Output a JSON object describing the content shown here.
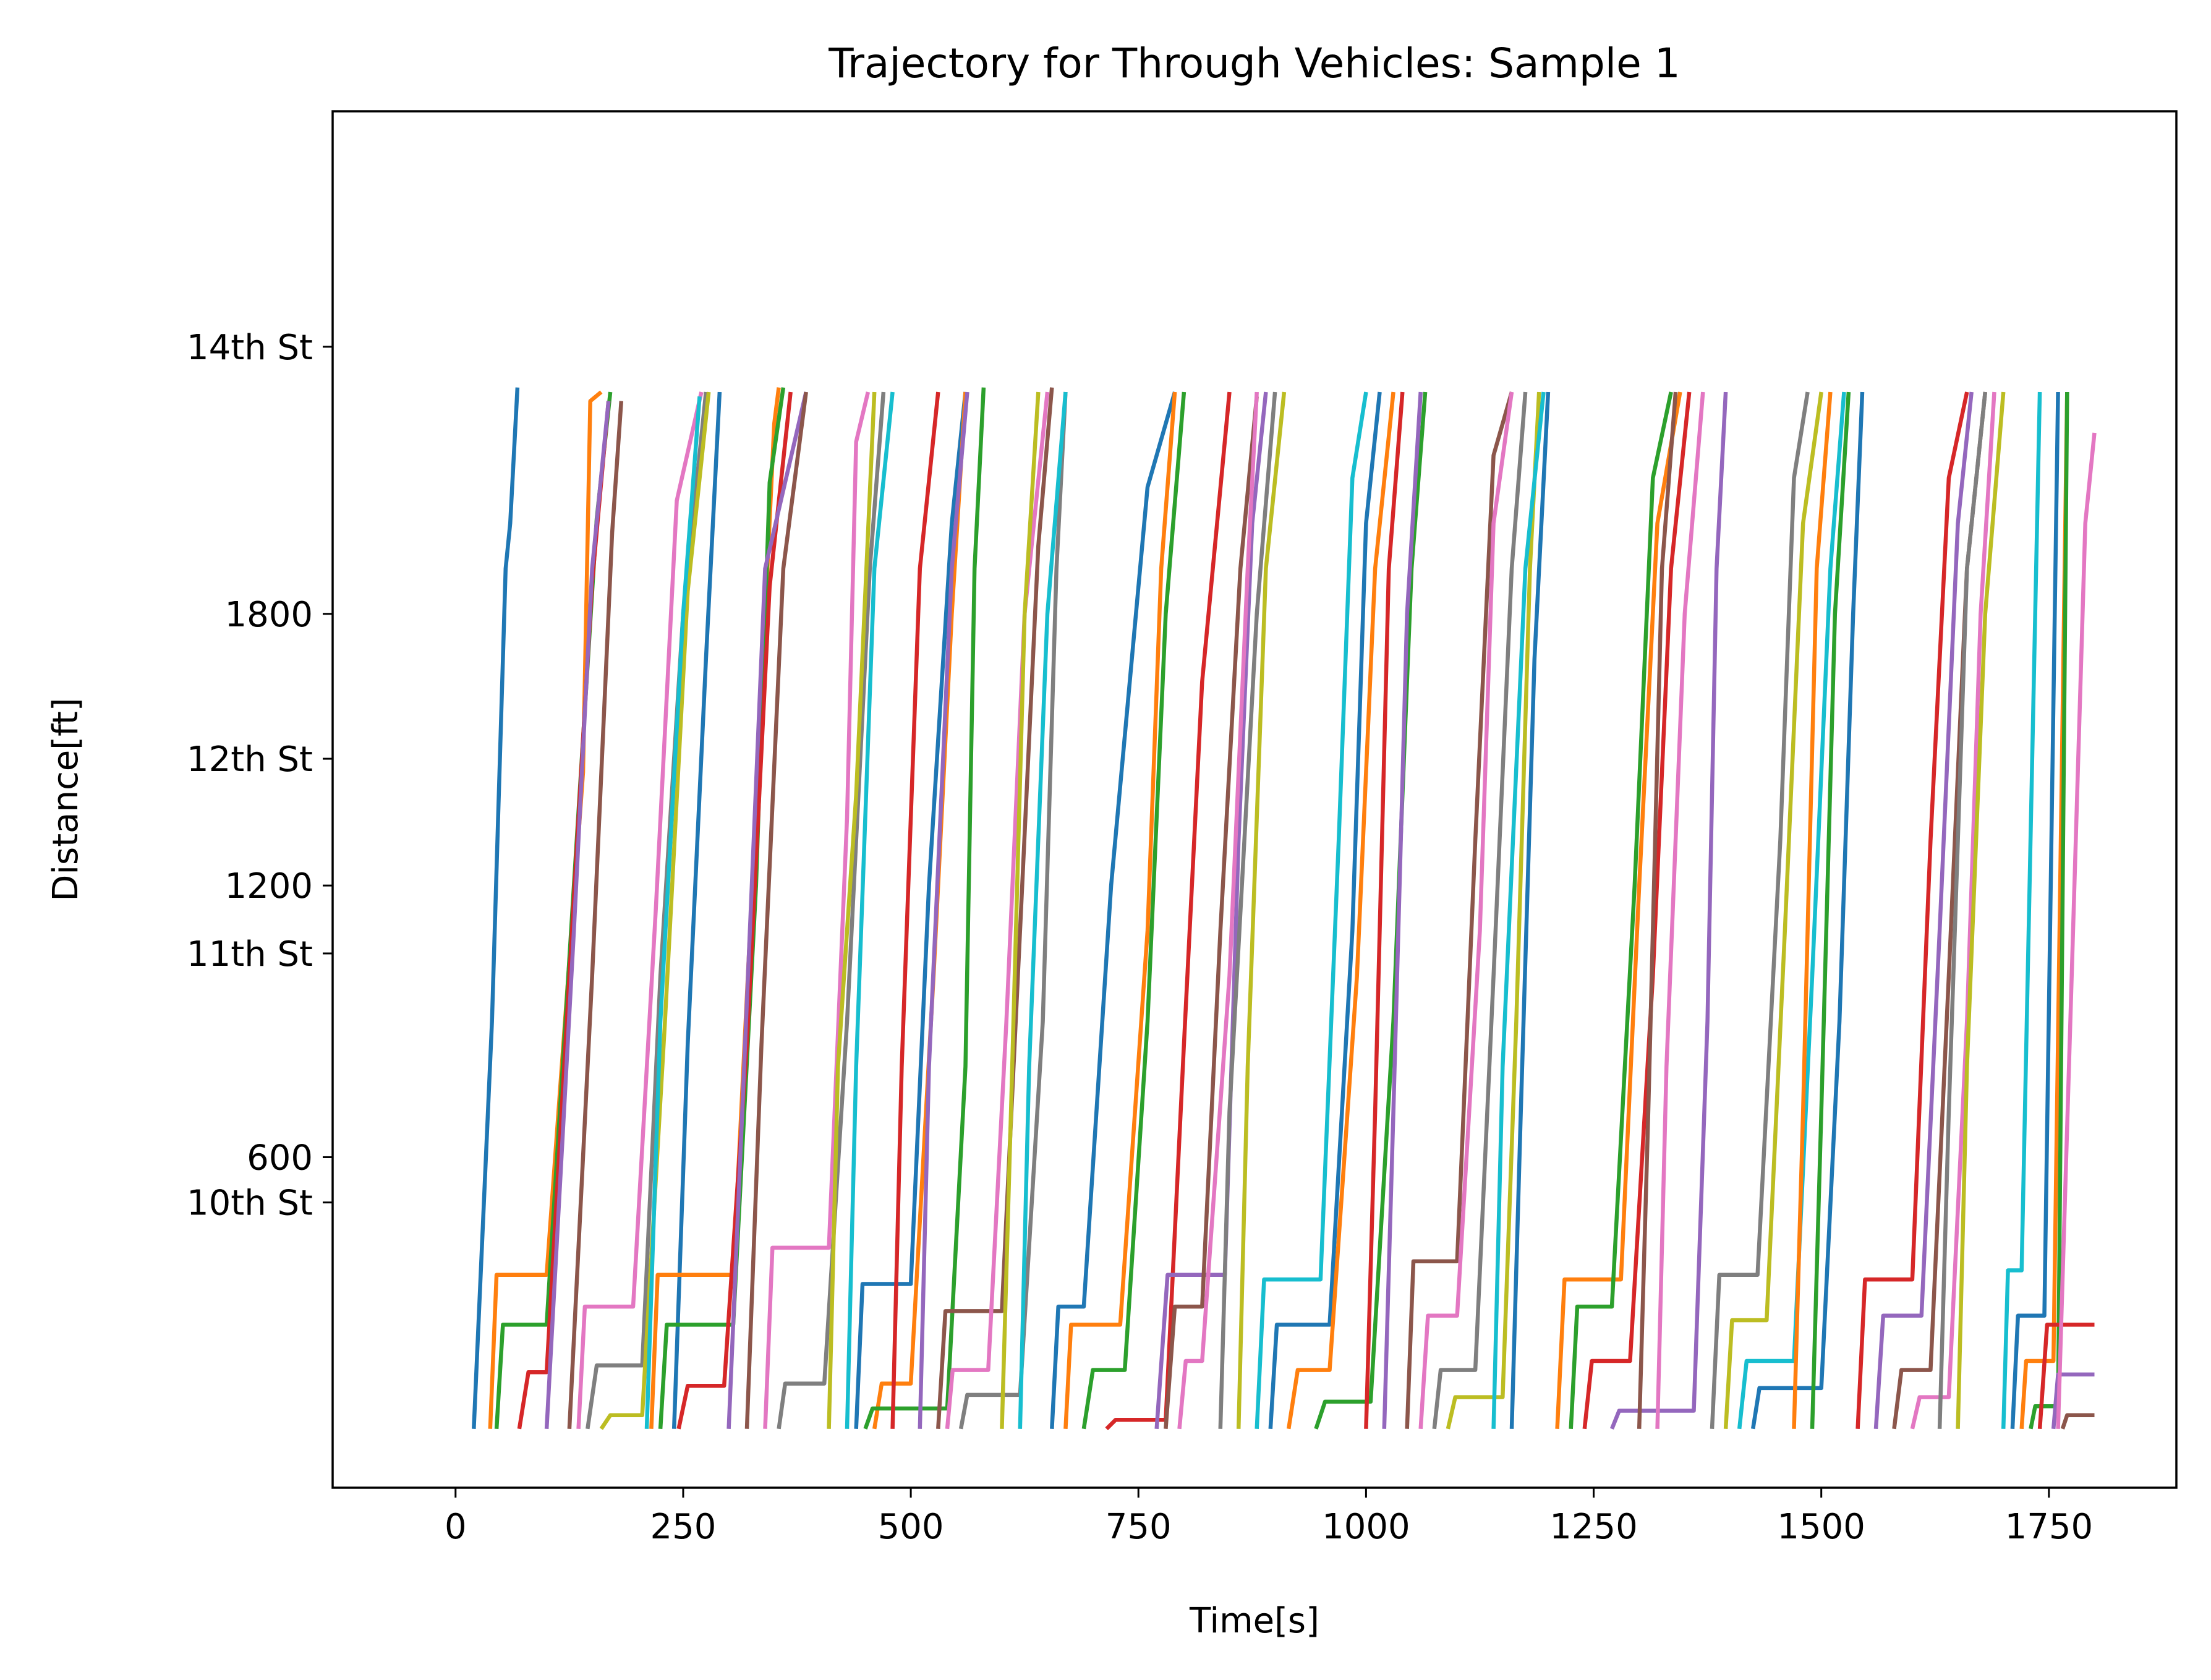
{
  "chart_data": {
    "type": "line",
    "title": "Trajectory for Through Vehicles: Sample 1",
    "xlabel": "Time[s]",
    "ylabel": "Distance[ft]",
    "xlim": [
      -135,
      1890
    ],
    "ylim": [
      -130,
      2910
    ],
    "grid": false,
    "legend": "none",
    "x_ticks": [
      {
        "value": 0,
        "label": "0"
      },
      {
        "value": 250,
        "label": "250"
      },
      {
        "value": 500,
        "label": "500"
      },
      {
        "value": 750,
        "label": "750"
      },
      {
        "value": 1000,
        "label": "1000"
      },
      {
        "value": 1250,
        "label": "1250"
      },
      {
        "value": 1500,
        "label": "1500"
      },
      {
        "value": 1750,
        "label": "1750"
      }
    ],
    "y_ticks": [
      {
        "value": 500,
        "label": "10th St"
      },
      {
        "value": 600,
        "label": "600"
      },
      {
        "value": 1050,
        "label": "11th St"
      },
      {
        "value": 1200,
        "label": "1200"
      },
      {
        "value": 1480,
        "label": "12th St"
      },
      {
        "value": 1800,
        "label": "1800"
      },
      {
        "value": 2390,
        "label": "14th St"
      }
    ],
    "palette": [
      "#1f77b4",
      "#ff7f0e",
      "#2ca02c",
      "#d62728",
      "#9467bd",
      "#8c564b",
      "#e377c2",
      "#7f7f7f",
      "#bcbd22",
      "#17becf"
    ],
    "series": [
      {
        "x": [
          20,
          40,
          55,
          60,
          68
        ],
        "y": [
          0,
          900,
          1900,
          2000,
          2300
        ]
      },
      {
        "x": [
          38,
          45,
          100,
          140,
          148,
          160
        ],
        "y": [
          0,
          340,
          340,
          1450,
          2270,
          2290
        ]
      },
      {
        "x": [
          45,
          52,
          100,
          130,
          155,
          170
        ],
        "y": [
          0,
          230,
          230,
          1200,
          2010,
          2290
        ]
      },
      {
        "x": [
          70,
          80,
          100,
          125,
          150,
          168
        ],
        "y": [
          0,
          125,
          125,
          1000,
          1870,
          2270
        ]
      },
      {
        "x": [
          100,
          130,
          150,
          168
        ],
        "y": [
          0,
          1100,
          1900,
          2270
        ]
      },
      {
        "x": [
          125,
          150,
          172,
          182
        ],
        "y": [
          0,
          1000,
          1980,
          2270
        ]
      },
      {
        "x": [
          135,
          142,
          195,
          220,
          243,
          270
        ],
        "y": [
          0,
          270,
          270,
          1150,
          2050,
          2290
        ]
      },
      {
        "x": [
          145,
          155,
          205,
          225,
          250,
          275
        ],
        "y": [
          0,
          140,
          140,
          1000,
          1800,
          2290
        ]
      },
      {
        "x": [
          160,
          170,
          205,
          230,
          255,
          278
        ],
        "y": [
          0,
          30,
          30,
          900,
          1850,
          2290
        ]
      },
      {
        "x": [
          210,
          225,
          250,
          268
        ],
        "y": [
          0,
          900,
          1800,
          2280
        ]
      },
      {
        "x": [
          240,
          255,
          275,
          290
        ],
        "y": [
          0,
          850,
          1700,
          2290
        ]
      },
      {
        "x": [
          215,
          222,
          305,
          330,
          350,
          355
        ],
        "y": [
          0,
          340,
          340,
          1370,
          2220,
          2300
        ]
      },
      {
        "x": [
          225,
          232,
          305,
          330,
          345,
          360
        ],
        "y": [
          0,
          230,
          230,
          1200,
          2090,
          2300
        ]
      },
      {
        "x": [
          245,
          255,
          295,
          320,
          345,
          368
        ],
        "y": [
          0,
          95,
          95,
          850,
          1860,
          2290
        ]
      },
      {
        "x": [
          300,
          318,
          340,
          385
        ],
        "y": [
          0,
          850,
          1900,
          2290
        ]
      },
      {
        "x": [
          320,
          336,
          360,
          385
        ],
        "y": [
          0,
          850,
          1900,
          2290
        ]
      },
      {
        "x": [
          340,
          348,
          410,
          430,
          440,
          453
        ],
        "y": [
          0,
          400,
          400,
          1350,
          2180,
          2290
        ]
      },
      {
        "x": [
          355,
          362,
          405,
          430,
          455,
          470
        ],
        "y": [
          0,
          100,
          100,
          900,
          1900,
          2290
        ]
      },
      {
        "x": [
          410,
          420,
          440,
          460
        ],
        "y": [
          0,
          800,
          1400,
          2290
        ]
      },
      {
        "x": [
          430,
          440,
          460,
          480
        ],
        "y": [
          0,
          800,
          1900,
          2290
        ]
      },
      {
        "x": [
          440,
          447,
          500,
          520,
          545,
          560
        ],
        "y": [
          0,
          320,
          320,
          1200,
          2000,
          2290
        ]
      },
      {
        "x": [
          460,
          468,
          500,
          525,
          545,
          560
        ],
        "y": [
          0,
          100,
          100,
          1000,
          1800,
          2290
        ]
      },
      {
        "x": [
          450,
          458,
          540,
          560,
          570,
          580
        ],
        "y": [
          0,
          45,
          45,
          800,
          1900,
          2300
        ]
      },
      {
        "x": [
          480,
          490,
          510,
          530
        ],
        "y": [
          0,
          800,
          1900,
          2290
        ]
      },
      {
        "x": [
          510,
          520,
          545,
          562
        ],
        "y": [
          0,
          800,
          1900,
          2290
        ]
      },
      {
        "x": [
          530,
          538,
          600,
          620,
          640,
          655
        ],
        "y": [
          0,
          260,
          260,
          1100,
          1950,
          2300
        ]
      },
      {
        "x": [
          540,
          546,
          585,
          605,
          625,
          650
        ],
        "y": [
          0,
          130,
          130,
          900,
          1800,
          2290
        ]
      },
      {
        "x": [
          555,
          562,
          620,
          645,
          660,
          670
        ],
        "y": [
          0,
          75,
          75,
          900,
          1900,
          2290
        ]
      },
      {
        "x": [
          600,
          610,
          625,
          640
        ],
        "y": [
          0,
          700,
          1800,
          2290
        ]
      },
      {
        "x": [
          620,
          630,
          650,
          670
        ],
        "y": [
          0,
          800,
          1800,
          2290
        ]
      },
      {
        "x": [
          655,
          662,
          690,
          720,
          760,
          790
        ],
        "y": [
          0,
          270,
          270,
          1200,
          2080,
          2290
        ]
      },
      {
        "x": [
          670,
          676,
          730,
          760,
          775,
          790
        ],
        "y": [
          0,
          230,
          230,
          1100,
          1900,
          2290
        ]
      },
      {
        "x": [
          690,
          700,
          735,
          760,
          780,
          800
        ],
        "y": [
          0,
          130,
          130,
          900,
          1800,
          2290
        ]
      },
      {
        "x": [
          715,
          725,
          780,
          800,
          820,
          850
        ],
        "y": [
          0,
          20,
          20,
          850,
          1650,
          2290
        ]
      },
      {
        "x": [
          770,
          782,
          845,
          860,
          875,
          890
        ],
        "y": [
          0,
          340,
          340,
          1300,
          2000,
          2290
        ]
      },
      {
        "x": [
          780,
          790,
          820,
          840,
          862,
          880
        ],
        "y": [
          0,
          270,
          270,
          1100,
          1900,
          2280
        ]
      },
      {
        "x": [
          795,
          802,
          820,
          850,
          870,
          880
        ],
        "y": [
          0,
          150,
          150,
          1000,
          1900,
          2290
        ]
      },
      {
        "x": [
          840,
          850,
          880,
          900
        ],
        "y": [
          0,
          700,
          1800,
          2290
        ]
      },
      {
        "x": [
          860,
          870,
          890,
          910
        ],
        "y": [
          0,
          800,
          1900,
          2290
        ]
      },
      {
        "x": [
          880,
          888,
          950,
          970,
          985,
          1000
        ],
        "y": [
          0,
          330,
          330,
          1300,
          2100,
          2290
        ]
      },
      {
        "x": [
          895,
          902,
          960,
          985,
          1000,
          1015
        ],
        "y": [
          0,
          230,
          230,
          1100,
          2000,
          2290
        ]
      },
      {
        "x": [
          915,
          925,
          960,
          990,
          1010,
          1030
        ],
        "y": [
          0,
          130,
          130,
          1000,
          1900,
          2290
        ]
      },
      {
        "x": [
          945,
          955,
          1005,
          1030,
          1050,
          1065
        ],
        "y": [
          0,
          60,
          60,
          900,
          1900,
          2290
        ]
      },
      {
        "x": [
          1000,
          1010,
          1025,
          1040
        ],
        "y": [
          0,
          700,
          1900,
          2290
        ]
      },
      {
        "x": [
          1020,
          1030,
          1045,
          1060
        ],
        "y": [
          0,
          700,
          1800,
          2290
        ]
      },
      {
        "x": [
          1045,
          1052,
          1100,
          1120,
          1140,
          1160
        ],
        "y": [
          0,
          370,
          370,
          1300,
          2150,
          2290
        ]
      },
      {
        "x": [
          1060,
          1068,
          1100,
          1125,
          1140,
          1160
        ],
        "y": [
          0,
          250,
          250,
          1100,
          2000,
          2290
        ]
      },
      {
        "x": [
          1075,
          1082,
          1120,
          1140,
          1160,
          1175
        ],
        "y": [
          0,
          130,
          130,
          1000,
          1900,
          2290
        ]
      },
      {
        "x": [
          1090,
          1098,
          1150,
          1165,
          1180,
          1190
        ],
        "y": [
          0,
          70,
          70,
          900,
          1900,
          2290
        ]
      },
      {
        "x": [
          1140,
          1150,
          1175,
          1195
        ],
        "y": [
          0,
          800,
          1900,
          2290
        ]
      },
      {
        "x": [
          1160,
          1170,
          1185,
          1200
        ],
        "y": [
          0,
          700,
          1700,
          2290
        ]
      },
      {
        "x": [
          1210,
          1218,
          1280,
          1300,
          1320,
          1345
        ],
        "y": [
          0,
          330,
          330,
          1200,
          2000,
          2290
        ]
      },
      {
        "x": [
          1225,
          1232,
          1270,
          1295,
          1315,
          1335
        ],
        "y": [
          0,
          270,
          270,
          1200,
          2100,
          2290
        ]
      },
      {
        "x": [
          1240,
          1248,
          1290,
          1315,
          1335,
          1355
        ],
        "y": [
          0,
          150,
          150,
          1000,
          1900,
          2290
        ]
      },
      {
        "x": [
          1270,
          1278,
          1360,
          1375,
          1385,
          1395
        ],
        "y": [
          0,
          40,
          40,
          900,
          1900,
          2290
        ]
      },
      {
        "x": [
          1300,
          1310,
          1325,
          1340
        ],
        "y": [
          0,
          700,
          1900,
          2290
        ]
      },
      {
        "x": [
          1320,
          1330,
          1350,
          1370
        ],
        "y": [
          0,
          800,
          1800,
          2290
        ]
      },
      {
        "x": [
          1380,
          1388,
          1430,
          1455,
          1470,
          1485
        ],
        "y": [
          0,
          340,
          340,
          1300,
          2100,
          2290
        ]
      },
      {
        "x": [
          1395,
          1402,
          1440,
          1460,
          1480,
          1500
        ],
        "y": [
          0,
          240,
          240,
          1100,
          2000,
          2290
        ]
      },
      {
        "x": [
          1410,
          1418,
          1470,
          1490,
          1510,
          1525
        ],
        "y": [
          0,
          150,
          150,
          1000,
          1900,
          2290
        ]
      },
      {
        "x": [
          1425,
          1432,
          1500,
          1520,
          1535,
          1545
        ],
        "y": [
          0,
          90,
          90,
          900,
          1800,
          2290
        ]
      },
      {
        "x": [
          1470,
          1480,
          1495,
          1510
        ],
        "y": [
          0,
          700,
          1900,
          2290
        ]
      },
      {
        "x": [
          1490,
          1500,
          1515,
          1530
        ],
        "y": [
          0,
          700,
          1800,
          2290
        ]
      },
      {
        "x": [
          1540,
          1548,
          1600,
          1620,
          1640,
          1660
        ],
        "y": [
          0,
          330,
          330,
          1300,
          2100,
          2290
        ]
      },
      {
        "x": [
          1560,
          1568,
          1610,
          1630,
          1650,
          1665
        ],
        "y": [
          0,
          250,
          250,
          1100,
          2000,
          2290
        ]
      },
      {
        "x": [
          1580,
          1588,
          1620,
          1640,
          1660,
          1680
        ],
        "y": [
          0,
          130,
          130,
          1000,
          1900,
          2290
        ]
      },
      {
        "x": [
          1600,
          1608,
          1640,
          1660,
          1675,
          1690
        ],
        "y": [
          0,
          70,
          70,
          900,
          1800,
          2290
        ]
      },
      {
        "x": [
          1630,
          1640,
          1660,
          1680
        ],
        "y": [
          0,
          700,
          1900,
          2290
        ]
      },
      {
        "x": [
          1650,
          1660,
          1680,
          1700
        ],
        "y": [
          0,
          800,
          1800,
          2290
        ]
      },
      {
        "x": [
          1700,
          1705,
          1720,
          1740
        ],
        "y": [
          0,
          350,
          350,
          2290
        ]
      },
      {
        "x": [
          1710,
          1716,
          1745,
          1760
        ],
        "y": [
          0,
          250,
          250,
          2290
        ]
      },
      {
        "x": [
          1720,
          1725,
          1755,
          1770
        ],
        "y": [
          0,
          150,
          150,
          2290
        ]
      },
      {
        "x": [
          1730,
          1735,
          1760,
          1770
        ],
        "y": [
          0,
          50,
          50,
          2290
        ]
      },
      {
        "x": [
          1740,
          1748,
          1800
        ],
        "y": [
          0,
          230,
          230
        ]
      },
      {
        "x": [
          1755,
          1760,
          1800
        ],
        "y": [
          0,
          120,
          120
        ]
      },
      {
        "x": [
          1765,
          1770,
          1800
        ],
        "y": [
          0,
          30,
          30
        ]
      },
      {
        "x": [
          1760,
          1775,
          1790,
          1800
        ],
        "y": [
          0,
          1000,
          2000,
          2200
        ]
      }
    ]
  }
}
